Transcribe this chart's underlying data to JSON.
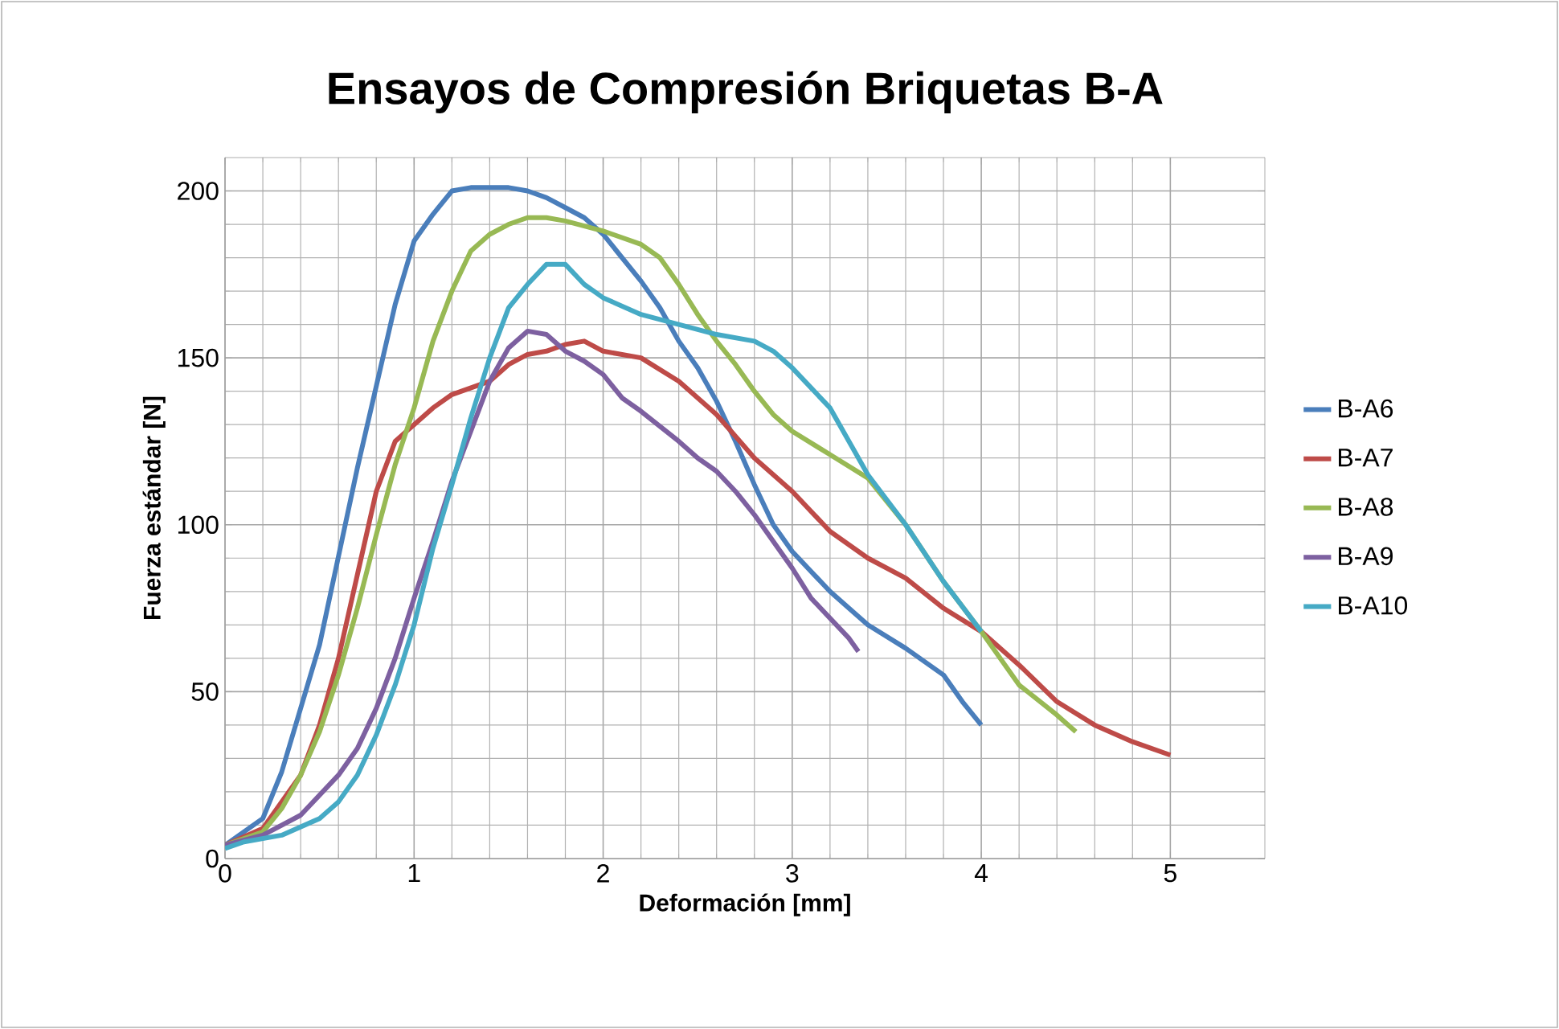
{
  "chart_data": {
    "type": "line",
    "title": "Ensayos de Compresión Briquetas B-A",
    "xlabel": "Deformación [mm]",
    "ylabel": "Fuerza estándar [N]",
    "xlim": [
      0,
      5.5
    ],
    "ylim": [
      0,
      210
    ],
    "xticks": [
      0,
      1,
      2,
      3,
      4,
      5
    ],
    "yticks": [
      0,
      50,
      100,
      150,
      200
    ],
    "grid": true,
    "legend": "right",
    "marker": "none",
    "line_style": "solid",
    "series": [
      {
        "name": "B-A6",
        "color": "#4a7ebb",
        "x": [
          0,
          0.2,
          0.3,
          0.5,
          0.7,
          0.9,
          1.0,
          1.1,
          1.2,
          1.3,
          1.5,
          1.6,
          1.7,
          1.8,
          1.9,
          2.0,
          2.1,
          2.2,
          2.3,
          2.4,
          2.5,
          2.6,
          2.7,
          2.8,
          2.9,
          3.0,
          3.2,
          3.4,
          3.6,
          3.8,
          3.9,
          4.0
        ],
        "values": [
          4,
          12,
          26,
          64,
          117,
          166,
          185,
          193,
          200,
          201,
          201,
          200,
          198,
          195,
          192,
          187,
          180,
          173,
          165,
          155,
          147,
          137,
          125,
          112,
          100,
          92,
          80,
          70,
          63,
          55,
          47,
          40
        ]
      },
      {
        "name": "B-A7",
        "color": "#be4b48",
        "x": [
          0,
          0.2,
          0.4,
          0.5,
          0.6,
          0.7,
          0.8,
          0.9,
          1.0,
          1.1,
          1.2,
          1.4,
          1.5,
          1.6,
          1.7,
          1.8,
          1.9,
          2.0,
          2.2,
          2.4,
          2.6,
          2.8,
          3.0,
          3.2,
          3.4,
          3.6,
          3.8,
          4.0,
          4.2,
          4.4,
          4.6,
          4.8,
          5.0
        ],
        "values": [
          4,
          9,
          25,
          40,
          60,
          85,
          110,
          125,
          130,
          135,
          139,
          143,
          148,
          151,
          152,
          154,
          155,
          152,
          150,
          143,
          133,
          120,
          110,
          98,
          90,
          84,
          75,
          68,
          58,
          47,
          40,
          35,
          31
        ]
      },
      {
        "name": "B-A8",
        "color": "#98b954",
        "x": [
          0,
          0.2,
          0.3,
          0.4,
          0.5,
          0.6,
          0.7,
          0.8,
          0.9,
          1.0,
          1.1,
          1.2,
          1.3,
          1.4,
          1.5,
          1.6,
          1.7,
          1.8,
          2.0,
          2.2,
          2.3,
          2.4,
          2.5,
          2.6,
          2.7,
          2.8,
          2.9,
          3.0,
          3.2,
          3.4,
          3.6,
          3.8,
          4.0,
          4.2,
          4.4,
          4.5
        ],
        "values": [
          4,
          8,
          15,
          25,
          38,
          55,
          75,
          97,
          118,
          135,
          155,
          170,
          182,
          187,
          190,
          192,
          192,
          191,
          188,
          184,
          180,
          172,
          163,
          155,
          148,
          140,
          133,
          128,
          121,
          114,
          100,
          83,
          68,
          52,
          43,
          38
        ]
      },
      {
        "name": "B-A9",
        "color": "#7d60a0",
        "x": [
          0,
          0.2,
          0.4,
          0.6,
          0.7,
          0.8,
          0.9,
          1.0,
          1.1,
          1.2,
          1.3,
          1.4,
          1.5,
          1.6,
          1.7,
          1.8,
          1.9,
          2.0,
          2.1,
          2.2,
          2.4,
          2.5,
          2.6,
          2.7,
          2.8,
          2.9,
          3.0,
          3.1,
          3.2,
          3.3,
          3.35
        ],
        "values": [
          4,
          7,
          13,
          25,
          33,
          45,
          60,
          78,
          95,
          113,
          128,
          143,
          153,
          158,
          157,
          152,
          149,
          145,
          138,
          134,
          125,
          120,
          116,
          110,
          103,
          95,
          87,
          78,
          72,
          66,
          62
        ]
      },
      {
        "name": "B-A10",
        "color": "#46aac5",
        "x": [
          0,
          0.1,
          0.3,
          0.5,
          0.6,
          0.7,
          0.8,
          0.9,
          1.0,
          1.1,
          1.2,
          1.3,
          1.4,
          1.5,
          1.6,
          1.7,
          1.8,
          1.9,
          2.0,
          2.2,
          2.4,
          2.6,
          2.8,
          2.9,
          3.0,
          3.2,
          3.3,
          3.4,
          3.6,
          3.8,
          4.0
        ],
        "values": [
          3,
          5,
          7,
          12,
          17,
          25,
          37,
          52,
          70,
          93,
          112,
          132,
          150,
          165,
          172,
          178,
          178,
          172,
          168,
          163,
          160,
          157,
          155,
          152,
          147,
          135,
          125,
          115,
          100,
          83,
          68
        ]
      }
    ]
  }
}
